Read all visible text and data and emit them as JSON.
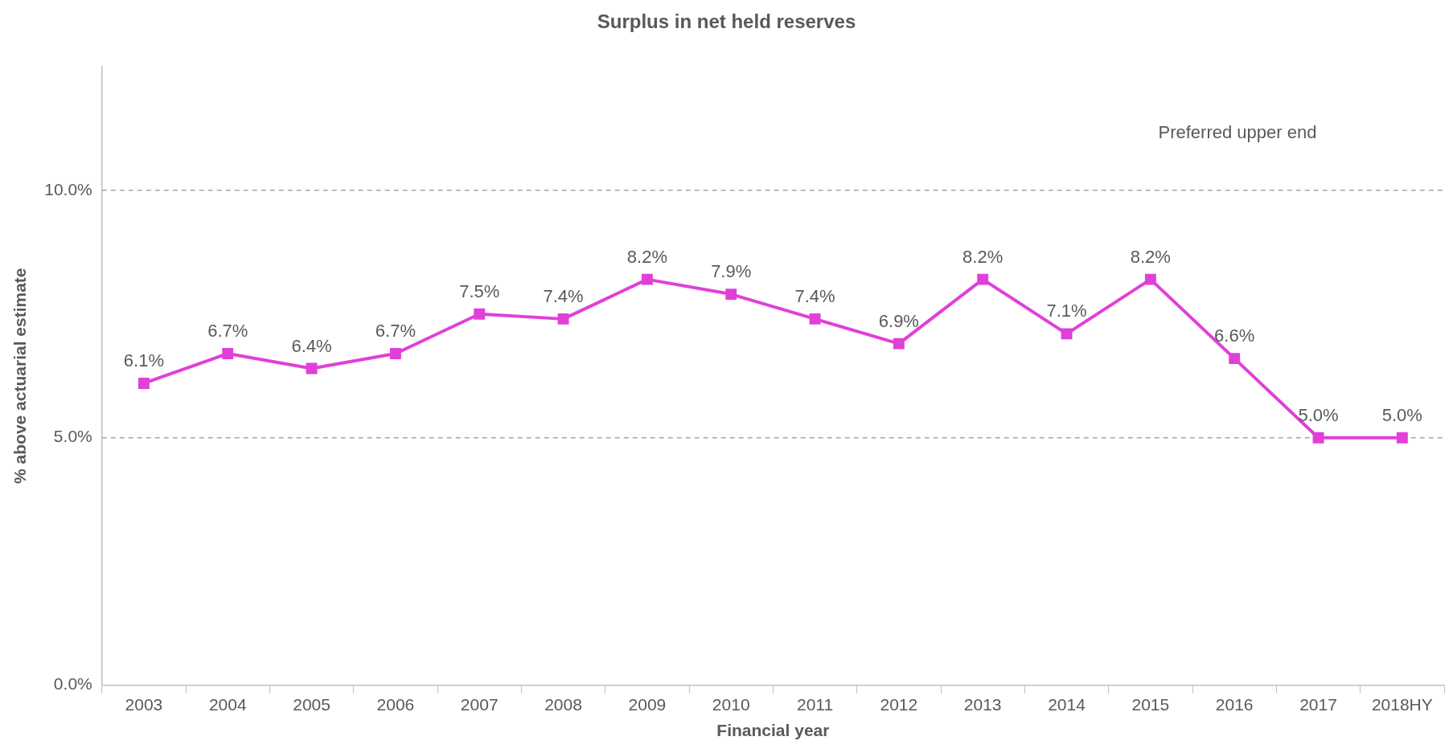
{
  "chart_data": {
    "type": "line",
    "title": "Surplus in net held reserves",
    "xlabel": "Financial year",
    "ylabel": "% above actuarial estimate",
    "categories": [
      "2003",
      "2004",
      "2005",
      "2006",
      "2007",
      "2008",
      "2009",
      "2010",
      "2011",
      "2012",
      "2013",
      "2014",
      "2015",
      "2016",
      "2017",
      "2018HY"
    ],
    "series": [
      {
        "color": "#e040d8",
        "values": [
          6.1,
          6.7,
          6.4,
          6.7,
          7.5,
          7.4,
          8.2,
          7.9,
          7.4,
          6.9,
          8.2,
          7.1,
          8.2,
          6.6,
          5.0,
          5.0
        ],
        "value_labels": [
          "6.1%",
          "6.7%",
          "6.4%",
          "6.7%",
          "7.5%",
          "7.4%",
          "8.2%",
          "7.9%",
          "7.4%",
          "6.9%",
          "8.2%",
          "7.1%",
          "8.2%",
          "6.6%",
          "5.0%",
          "5.0%"
        ]
      }
    ],
    "ylim": [
      0,
      12.5
    ],
    "yticks": [
      {
        "value": 0,
        "label": "0.0%"
      },
      {
        "value": 5,
        "label": "5.0%"
      },
      {
        "value": 10,
        "label": "10.0%"
      }
    ],
    "ref_lines": [
      {
        "axis": "y",
        "value": 10,
        "label": "Preferred upper end",
        "color": "#a6a6a6",
        "line_style": "dashed"
      },
      {
        "axis": "y",
        "value": 5,
        "color": "#a6a6a6",
        "line_style": "dashed"
      }
    ],
    "grid": false,
    "legend": false,
    "marker": "square",
    "line_style": "solid"
  }
}
